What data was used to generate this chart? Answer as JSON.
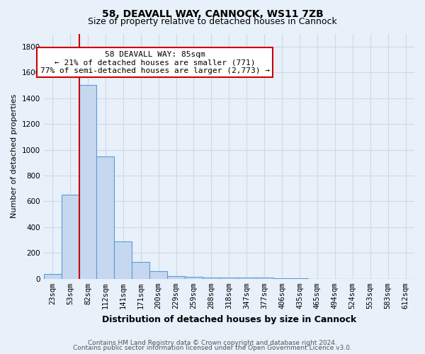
{
  "title1": "58, DEAVALL WAY, CANNOCK, WS11 7ZB",
  "title2": "Size of property relative to detached houses in Cannock",
  "xlabel": "Distribution of detached houses by size in Cannock",
  "ylabel": "Number of detached properties",
  "bar_labels": [
    "23sqm",
    "53sqm",
    "82sqm",
    "112sqm",
    "141sqm",
    "171sqm",
    "200sqm",
    "229sqm",
    "259sqm",
    "288sqm",
    "318sqm",
    "347sqm",
    "377sqm",
    "406sqm",
    "435sqm",
    "465sqm",
    "494sqm",
    "524sqm",
    "553sqm",
    "583sqm",
    "612sqm"
  ],
  "bar_values": [
    40,
    650,
    1500,
    950,
    290,
    130,
    60,
    20,
    15,
    10,
    8,
    8,
    8,
    4,
    2,
    1,
    1,
    1,
    0,
    0,
    0
  ],
  "bar_color": "#c5d8f0",
  "bar_edge_color": "#5b9bd5",
  "bar_edge_width": 0.8,
  "red_line_color": "#cc0000",
  "red_line_bar_index": 2,
  "annotation_line1": "58 DEAVALL WAY: 85sqm",
  "annotation_line2": "← 21% of detached houses are smaller (771)",
  "annotation_line3": "77% of semi-detached houses are larger (2,773) →",
  "annotation_box_color": "#ffffff",
  "annotation_box_edge": "#cc0000",
  "ylim": [
    0,
    1900
  ],
  "yticks": [
    0,
    200,
    400,
    600,
    800,
    1000,
    1200,
    1400,
    1600,
    1800
  ],
  "background_color": "#e8f0fa",
  "grid_color": "#d0d8e8",
  "footer1": "Contains HM Land Registry data © Crown copyright and database right 2024.",
  "footer2": "Contains public sector information licensed under the Open Government Licence v3.0.",
  "title1_fontsize": 10,
  "title2_fontsize": 9,
  "xlabel_fontsize": 9,
  "ylabel_fontsize": 8,
  "tick_fontsize": 7.5,
  "annot_fontsize": 8,
  "footer_fontsize": 6.5
}
